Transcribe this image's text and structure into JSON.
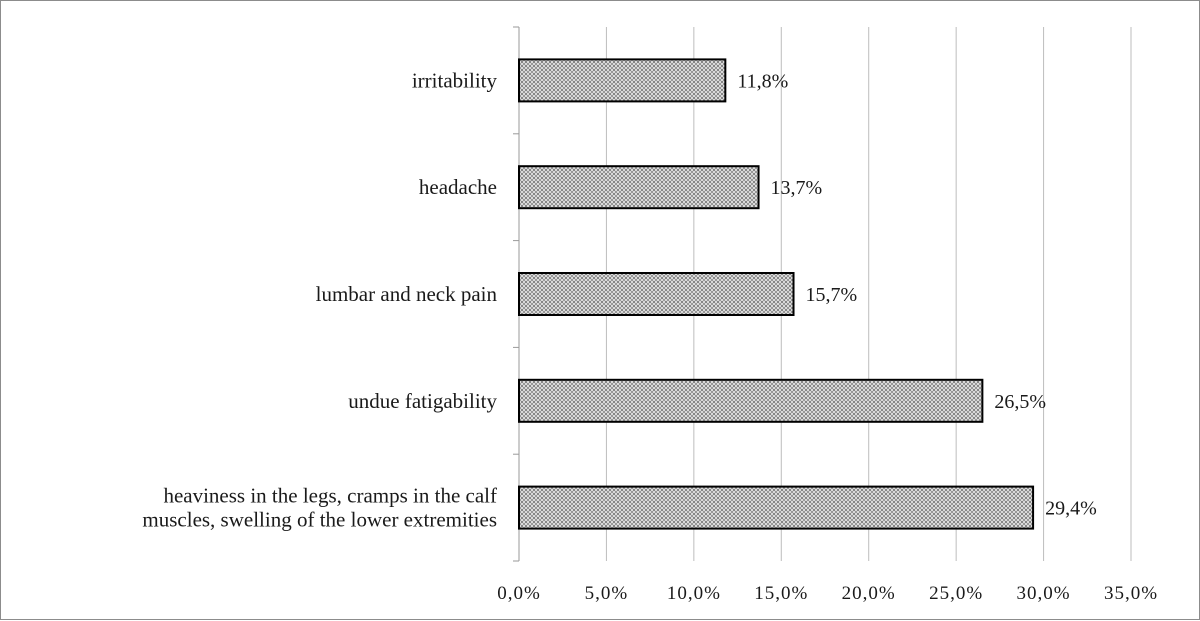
{
  "chart_data": {
    "type": "bar",
    "orientation": "horizontal",
    "categories": [
      [
        "irritability"
      ],
      [
        "headache"
      ],
      [
        "lumbar and neck pain"
      ],
      [
        "undue fatigability"
      ],
      [
        "heaviness in the legs, cramps in the calf",
        "muscles, swelling of the lower extremities"
      ]
    ],
    "values": [
      11.8,
      13.7,
      15.7,
      26.5,
      29.4
    ],
    "data_labels": [
      "11,8%",
      "13,7%",
      "15,7%",
      "26,5%",
      "29,4%"
    ],
    "xlim": [
      0,
      35
    ],
    "x_ticks": [
      0,
      5,
      10,
      15,
      20,
      25,
      30,
      35
    ],
    "x_tick_labels": [
      "0,0%",
      "5,0%",
      "10,0%",
      "15,0%",
      "20,0%",
      "25,0%",
      "30,0%",
      "35,0%"
    ],
    "title": "",
    "xlabel": "",
    "ylabel": "",
    "grid": "vertical",
    "legend": "none",
    "bar_fill": "dotted gray pattern",
    "bar_stroke_color": "#000000",
    "grid_color": "#bdbdbd"
  }
}
